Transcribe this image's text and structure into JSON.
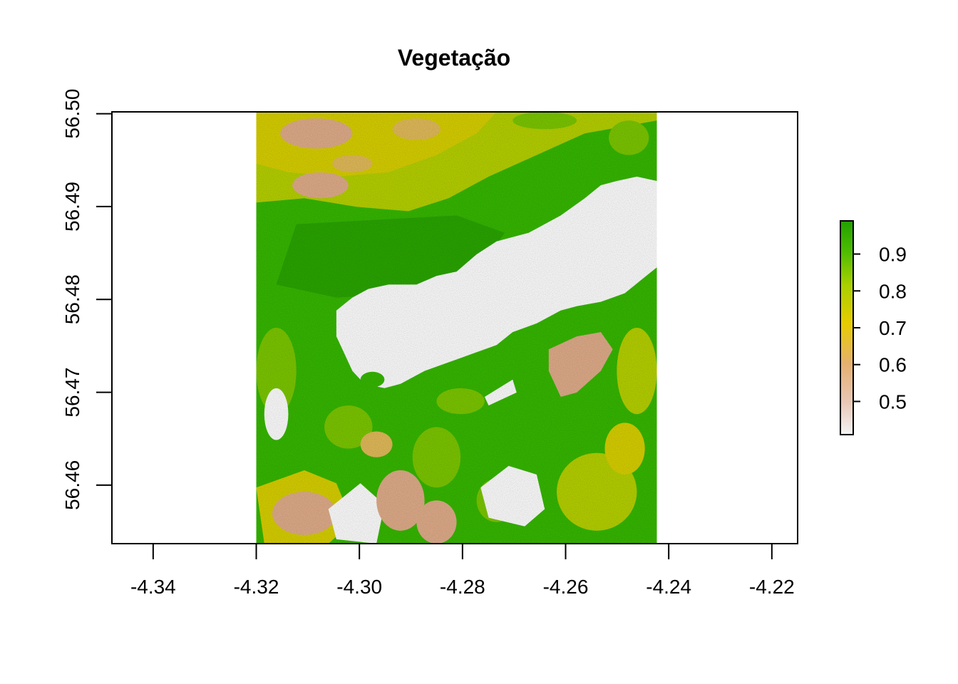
{
  "chart_data": {
    "type": "heatmap",
    "title": "Vegetação",
    "xlabel": "",
    "ylabel": "",
    "xlim": [
      -4.348,
      -4.215
    ],
    "ylim": [
      56.4537,
      56.5002
    ],
    "x_ticks": [
      -4.34,
      -4.32,
      -4.3,
      -4.28,
      -4.26,
      -4.24,
      -4.22
    ],
    "x_tick_labels": [
      "-4.34",
      "-4.32",
      "-4.30",
      "-4.28",
      "-4.26",
      "-4.24",
      "-4.22"
    ],
    "y_ticks": [
      56.46,
      56.47,
      56.48,
      56.49,
      56.5
    ],
    "y_tick_labels": [
      "56.46",
      "56.47",
      "56.48",
      "56.49",
      "56.50"
    ],
    "raster_extent": {
      "xmin": -4.32,
      "xmax": -4.2423,
      "ymin": 56.4537,
      "ymax": 56.5002
    },
    "value_range": [
      0.41,
      0.99
    ],
    "legend": {
      "position": "right",
      "ticks": [
        0.5,
        0.6,
        0.7,
        0.8,
        0.9
      ],
      "tick_labels": [
        "0.5",
        "0.6",
        "0.7",
        "0.8",
        "0.9"
      ],
      "colors": [
        "#f2f2f2",
        "#e8b08c",
        "#e6c61a",
        "#b9d400",
        "#33b800",
        "#1f9f00"
      ]
    },
    "grid": false
  }
}
